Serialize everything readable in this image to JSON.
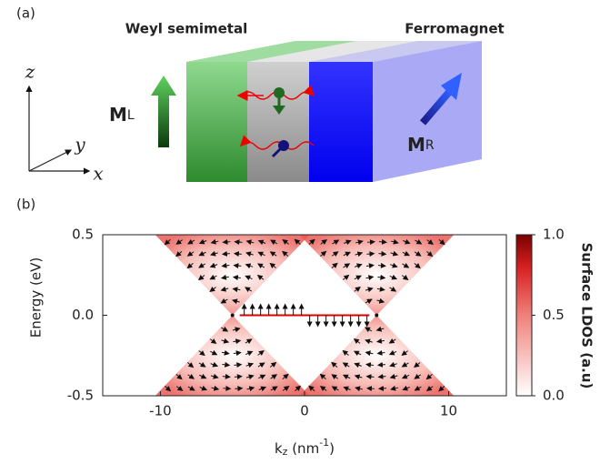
{
  "panel_a": {
    "label": "(a)",
    "left_title": "Weyl semimetal",
    "right_title": "Ferromagnet",
    "axis_z": "z",
    "axis_y": "y",
    "axis_x": "x",
    "m_left": "M",
    "m_left_sub": "L",
    "m_right": "M",
    "m_right_sub": "R"
  },
  "chart_data": {
    "type": "heatmap",
    "panel_label": "(b)",
    "xlabel_parts": [
      "k",
      "z",
      " (nm",
      "-1",
      ")"
    ],
    "ylabel": "Energy (eV)",
    "xlim": [
      -14,
      14
    ],
    "xticks": [
      -10,
      0,
      10
    ],
    "ylim": [
      -0.5,
      0.5
    ],
    "yticks": [
      -0.5,
      {
        "value": 0,
        "label": "0.0"
      },
      0.5
    ],
    "weyl_nodes": {
      "kz": [
        -5,
        5
      ],
      "energy": [
        0,
        0
      ]
    },
    "fermi_arc": {
      "kz": [
        -4.5,
        4.5
      ],
      "energy": [
        0,
        0
      ]
    },
    "colorbar": {
      "label": "Surface LDOS (a.u)",
      "clim": [
        0,
        1
      ],
      "ticks": [
        {
          "value": 0,
          "label": "0.0"
        },
        0.5,
        {
          "value": 1,
          "label": "1.0"
        }
      ]
    }
  }
}
